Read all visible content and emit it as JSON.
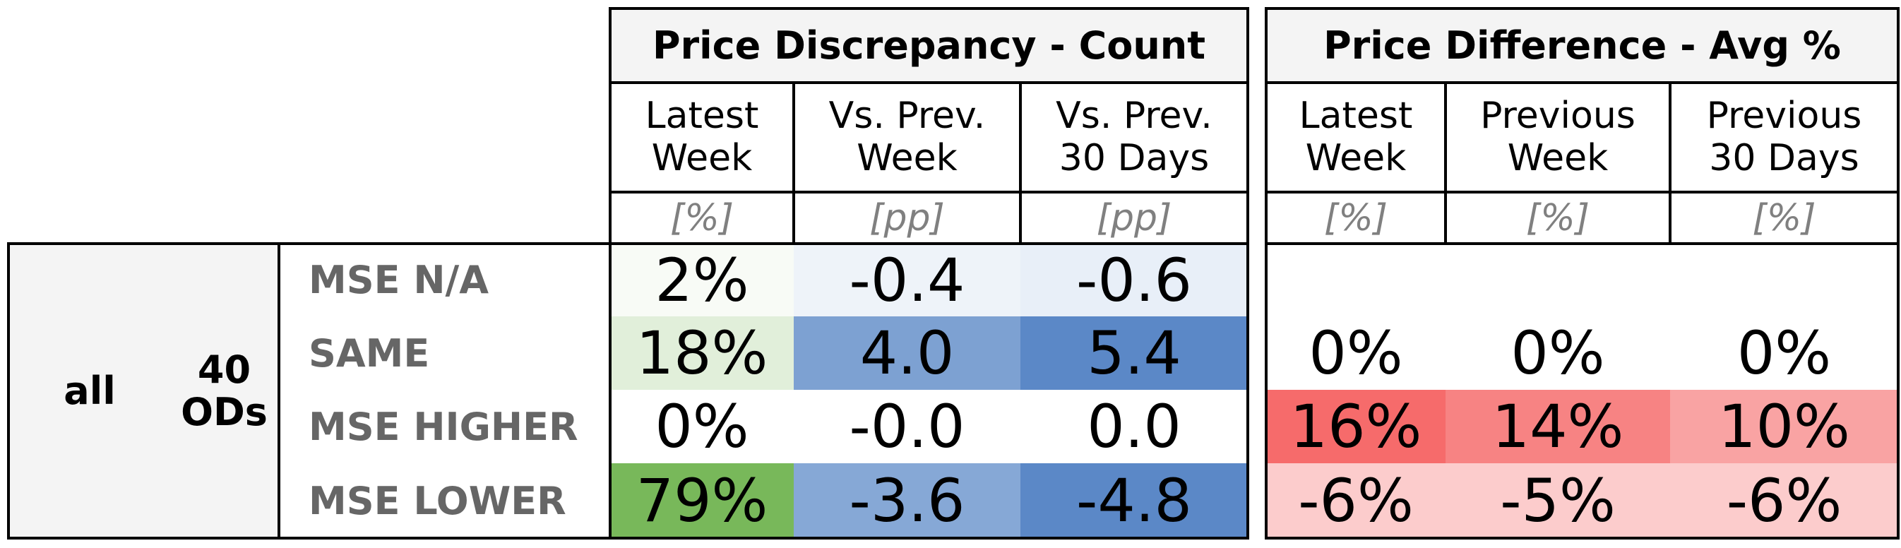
{
  "chart_data": {
    "type": "table",
    "groups": [
      {
        "title": "Price Discrepancy - Count",
        "columns": [
          {
            "label_lines": [
              "Latest",
              "Week"
            ],
            "unit": "[%]"
          },
          {
            "label_lines": [
              "Vs. Prev.",
              "Week"
            ],
            "unit": "[pp]"
          },
          {
            "label_lines": [
              "Vs. Prev.",
              "30 Days"
            ],
            "unit": "[pp]"
          }
        ]
      },
      {
        "title": "Price Difference - Avg %",
        "columns": [
          {
            "label_lines": [
              "Latest",
              "Week"
            ],
            "unit": "[%]"
          },
          {
            "label_lines": [
              "Previous",
              "Week"
            ],
            "unit": "[%]"
          },
          {
            "label_lines": [
              "Previous",
              "30 Days"
            ],
            "unit": "[%]"
          }
        ]
      }
    ],
    "row_group": {
      "segment": "all",
      "count_lines": [
        "40",
        "ODs"
      ]
    },
    "rows": [
      {
        "label": "MSE N/A",
        "count": [
          "2%",
          "-0.4",
          "-0.6"
        ],
        "avg": [
          "",
          "",
          ""
        ]
      },
      {
        "label": "SAME",
        "count": [
          "18%",
          "4.0",
          "5.4"
        ],
        "avg": [
          "0%",
          "0%",
          "0%"
        ]
      },
      {
        "label": "MSE HIGHER",
        "count": [
          "0%",
          "-0.0",
          "0.0"
        ],
        "avg": [
          "16%",
          "14%",
          "10%"
        ]
      },
      {
        "label": "MSE LOWER",
        "count": [
          "79%",
          "-3.6",
          "-4.8"
        ],
        "avg": [
          "-6%",
          "-5%",
          "-6%"
        ]
      }
    ],
    "cell_colors": {
      "count": [
        [
          "#f8fbf6",
          "#eef3f9",
          "#e8eff8"
        ],
        [
          "#e1efda",
          "#7da1d2",
          "#5b88c7"
        ],
        [
          "#ffffff",
          "#ffffff",
          "#ffffff"
        ],
        [
          "#78b85a",
          "#86a8d6",
          "#5b88c7"
        ]
      ],
      "avg": [
        [
          "#ffffff",
          "#ffffff",
          "#ffffff"
        ],
        [
          "#ffffff",
          "#ffffff",
          "#ffffff"
        ],
        [
          "#f66b6b",
          "#f78383",
          "#f9a3a3"
        ],
        [
          "#fccccc",
          "#fccccc",
          "#fccccc"
        ]
      ]
    },
    "colors": {
      "header_bg": "#f4f4f4",
      "row_label": "#666666",
      "unit": "#808080",
      "row_group_bg": "#f4f4f4"
    }
  }
}
